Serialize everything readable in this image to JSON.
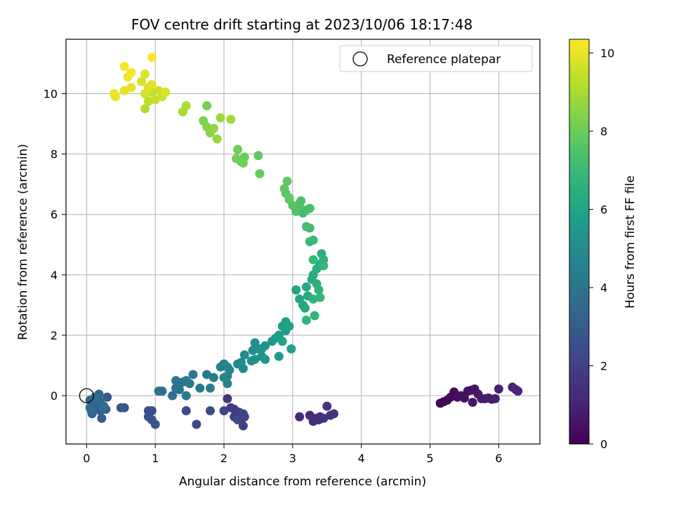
{
  "chart_data": {
    "type": "scatter",
    "title": "FOV centre drift starting at 2023/10/06 18:17:48",
    "xlabel": "Angular distance from reference (arcmin)",
    "ylabel": "Rotation from reference (arcmin)",
    "xlim": [
      -0.3,
      6.6
    ],
    "ylim": [
      -1.6,
      11.8
    ],
    "xticks": [
      0,
      1,
      2,
      3,
      4,
      5,
      6
    ],
    "yticks": [
      0,
      2,
      4,
      6,
      8,
      10
    ],
    "grid": true,
    "legend": {
      "position": "top-right",
      "entries": [
        "Reference platepar"
      ]
    },
    "reference_point": {
      "x": 0,
      "y": 0
    },
    "colorbar": {
      "label": "Hours from first FF file",
      "range": [
        0,
        10.35
      ],
      "ticks": [
        0,
        2,
        4,
        6,
        8,
        10
      ],
      "colormap": "viridis"
    },
    "series": [
      {
        "color_by": "hours",
        "points": [
          [
            5.15,
            -0.25,
            0.05
          ],
          [
            5.2,
            -0.2,
            0.1
          ],
          [
            5.25,
            -0.15,
            0.15
          ],
          [
            5.3,
            -0.05,
            0.2
          ],
          [
            5.35,
            0.12,
            0.25
          ],
          [
            5.4,
            -0.05,
            0.3
          ],
          [
            5.45,
            0.0,
            0.35
          ],
          [
            5.5,
            -0.08,
            0.4
          ],
          [
            5.55,
            0.15,
            0.45
          ],
          [
            5.6,
            0.18,
            0.5
          ],
          [
            5.65,
            0.22,
            0.55
          ],
          [
            5.62,
            -0.22,
            0.6
          ],
          [
            5.7,
            0.05,
            0.65
          ],
          [
            5.75,
            -0.1,
            0.7
          ],
          [
            5.8,
            -0.1,
            0.75
          ],
          [
            5.85,
            -0.08,
            0.8
          ],
          [
            5.9,
            -0.12,
            0.85
          ],
          [
            5.95,
            -0.1,
            0.9
          ],
          [
            6.0,
            0.22,
            0.95
          ],
          [
            6.2,
            0.28,
            1.0
          ],
          [
            6.25,
            0.2,
            1.05
          ],
          [
            6.28,
            0.15,
            1.1
          ],
          [
            3.1,
            -0.7,
            1.2
          ],
          [
            3.25,
            -0.65,
            1.25
          ],
          [
            3.3,
            -0.85,
            1.3
          ],
          [
            3.35,
            -0.75,
            1.35
          ],
          [
            3.4,
            -0.7,
            1.4
          ],
          [
            3.45,
            -0.75,
            1.45
          ],
          [
            3.5,
            -0.35,
            1.5
          ],
          [
            3.55,
            -0.65,
            1.55
          ],
          [
            3.6,
            -0.6,
            1.6
          ],
          [
            3.38,
            -0.8,
            1.42
          ],
          [
            2.05,
            -0.1,
            1.7
          ],
          [
            2.1,
            -0.4,
            1.75
          ],
          [
            2.15,
            -0.45,
            1.8
          ],
          [
            2.15,
            -0.7,
            1.85
          ],
          [
            2.2,
            -0.65,
            1.9
          ],
          [
            2.22,
            -0.55,
            1.95
          ],
          [
            2.25,
            -0.8,
            2.0
          ],
          [
            2.28,
            -1.0,
            2.05
          ],
          [
            2.3,
            -0.7,
            2.1
          ],
          [
            2.28,
            -0.6,
            2.15
          ],
          [
            2.0,
            -0.5,
            2.2
          ],
          [
            2.2,
            -0.8,
            2.25
          ],
          [
            1.45,
            -0.5,
            2.3
          ],
          [
            1.6,
            -0.95,
            2.35
          ],
          [
            1.8,
            -0.5,
            2.4
          ],
          [
            0.9,
            -0.5,
            2.45
          ],
          [
            0.95,
            -0.5,
            2.5
          ],
          [
            0.9,
            -0.7,
            2.55
          ],
          [
            0.95,
            -0.8,
            2.6
          ],
          [
            1.0,
            -0.95,
            2.65
          ],
          [
            0.5,
            -0.4,
            2.75
          ],
          [
            0.55,
            -0.4,
            2.8
          ],
          [
            0.3,
            -0.05,
            2.85
          ],
          [
            0.25,
            -0.35,
            2.9
          ],
          [
            0.28,
            -0.45,
            2.95
          ],
          [
            0.2,
            -0.5,
            3.0
          ],
          [
            0.22,
            -0.75,
            3.05
          ],
          [
            0.15,
            -0.35,
            3.1
          ],
          [
            0.1,
            -0.45,
            3.15
          ],
          [
            0.08,
            -0.6,
            3.2
          ],
          [
            0.12,
            -0.25,
            3.25
          ],
          [
            0.1,
            -0.2,
            3.3
          ],
          [
            0.18,
            0.05,
            3.35
          ],
          [
            0.15,
            -0.1,
            3.4
          ],
          [
            0.05,
            -0.15,
            3.45
          ],
          [
            0.05,
            -0.4,
            3.5
          ],
          [
            0.07,
            -0.5,
            3.55
          ],
          [
            0.2,
            -0.2,
            3.6
          ],
          [
            0.25,
            -0.4,
            3.65
          ],
          [
            0.12,
            -0.05,
            3.7
          ],
          [
            1.05,
            0.15,
            3.75
          ],
          [
            1.1,
            0.15,
            3.8
          ],
          [
            1.25,
            0.0,
            3.85
          ],
          [
            1.3,
            0.25,
            3.9
          ],
          [
            1.35,
            0.2,
            3.95
          ],
          [
            1.4,
            0.45,
            4.0
          ],
          [
            1.3,
            0.5,
            4.05
          ],
          [
            1.45,
            0.5,
            4.1
          ],
          [
            1.45,
            0.0,
            4.15
          ],
          [
            1.5,
            0.4,
            4.2
          ],
          [
            1.55,
            0.7,
            4.25
          ],
          [
            1.65,
            0.25,
            4.3
          ],
          [
            1.75,
            0.7,
            4.35
          ],
          [
            1.8,
            0.25,
            4.4
          ],
          [
            1.85,
            0.6,
            4.45
          ],
          [
            1.95,
            0.95,
            4.5
          ],
          [
            2.0,
            1.05,
            4.55
          ],
          [
            2.05,
            0.65,
            4.6
          ],
          [
            2.05,
            0.4,
            4.65
          ],
          [
            2.08,
            0.85,
            4.7
          ],
          [
            2.0,
            0.6,
            4.75
          ],
          [
            2.05,
            0.95,
            4.8
          ],
          [
            2.2,
            1.05,
            4.85
          ],
          [
            2.25,
            1.1,
            4.9
          ],
          [
            2.28,
            0.9,
            4.95
          ],
          [
            2.3,
            1.35,
            5.0
          ],
          [
            2.4,
            1.15,
            5.05
          ],
          [
            2.42,
            1.5,
            5.1
          ],
          [
            2.45,
            1.75,
            5.15
          ],
          [
            2.5,
            1.55,
            5.2
          ],
          [
            2.45,
            1.2,
            5.25
          ],
          [
            2.55,
            1.3,
            5.3
          ],
          [
            2.55,
            1.55,
            5.35
          ],
          [
            2.6,
            1.65,
            5.4
          ],
          [
            2.6,
            1.2,
            5.45
          ],
          [
            2.7,
            1.8,
            5.5
          ],
          [
            2.75,
            1.9,
            5.55
          ],
          [
            2.8,
            1.3,
            5.6
          ],
          [
            2.8,
            2.0,
            5.65
          ],
          [
            2.85,
            2.3,
            5.7
          ],
          [
            2.9,
            2.15,
            5.75
          ],
          [
            2.9,
            2.45,
            5.8
          ],
          [
            2.98,
            1.55,
            5.85
          ],
          [
            2.85,
            1.8,
            5.9
          ],
          [
            2.95,
            2.3,
            5.95
          ],
          [
            3.05,
            3.5,
            6.0
          ],
          [
            3.1,
            3.2,
            6.05
          ],
          [
            3.15,
            3.0,
            6.1
          ],
          [
            3.18,
            2.9,
            6.15
          ],
          [
            3.2,
            3.6,
            6.2
          ],
          [
            3.22,
            3.3,
            6.25
          ],
          [
            3.28,
            3.85,
            6.3
          ],
          [
            3.3,
            4.0,
            6.35
          ],
          [
            3.35,
            4.2,
            6.4
          ],
          [
            3.4,
            4.35,
            6.45
          ],
          [
            3.42,
            4.7,
            6.5
          ],
          [
            3.45,
            4.5,
            6.55
          ],
          [
            3.35,
            3.7,
            6.6
          ],
          [
            3.38,
            3.5,
            6.65
          ],
          [
            3.3,
            3.2,
            6.7
          ],
          [
            3.32,
            2.65,
            6.75
          ],
          [
            3.2,
            2.5,
            6.8
          ],
          [
            3.4,
            3.25,
            6.85
          ],
          [
            3.45,
            4.3,
            6.9
          ],
          [
            3.3,
            4.5,
            6.95
          ],
          [
            3.25,
            5.1,
            7.0
          ],
          [
            3.3,
            5.15,
            7.05
          ],
          [
            3.1,
            6.35,
            7.1
          ],
          [
            3.15,
            6.05,
            7.15
          ],
          [
            3.2,
            5.6,
            7.2
          ],
          [
            3.25,
            5.55,
            7.25
          ],
          [
            3.2,
            6.15,
            7.3
          ],
          [
            3.25,
            6.2,
            7.35
          ],
          [
            3.12,
            6.45,
            7.4
          ],
          [
            3.1,
            6.25,
            7.45
          ],
          [
            3.05,
            6.1,
            7.5
          ],
          [
            3.0,
            6.3,
            7.55
          ],
          [
            2.95,
            6.5,
            7.6
          ],
          [
            2.9,
            6.7,
            7.65
          ],
          [
            2.88,
            6.85,
            7.7
          ],
          [
            2.92,
            7.1,
            7.75
          ],
          [
            2.95,
            6.55,
            7.8
          ],
          [
            2.5,
            7.95,
            7.85
          ],
          [
            2.52,
            7.35,
            7.9
          ],
          [
            2.3,
            7.9,
            7.95
          ],
          [
            2.25,
            7.75,
            8.0
          ],
          [
            2.2,
            8.15,
            8.05
          ],
          [
            2.18,
            7.85,
            8.1
          ],
          [
            2.28,
            7.7,
            8.15
          ],
          [
            1.75,
            9.6,
            8.2
          ],
          [
            1.7,
            9.1,
            8.3
          ],
          [
            1.75,
            8.9,
            8.4
          ],
          [
            1.8,
            8.7,
            8.5
          ],
          [
            1.85,
            8.85,
            8.6
          ],
          [
            1.9,
            8.5,
            8.7
          ],
          [
            1.95,
            9.2,
            8.8
          ],
          [
            2.1,
            9.15,
            8.9
          ],
          [
            1.4,
            9.4,
            9.0
          ],
          [
            1.45,
            9.6,
            9.1
          ],
          [
            0.85,
            9.5,
            9.2
          ],
          [
            0.9,
            9.75,
            9.3
          ],
          [
            0.95,
            10.05,
            9.4
          ],
          [
            1.0,
            9.8,
            9.5
          ],
          [
            1.05,
            10.1,
            9.55
          ],
          [
            1.1,
            9.9,
            9.6
          ],
          [
            0.85,
            10.0,
            9.65
          ],
          [
            0.8,
            10.4,
            9.7
          ],
          [
            0.9,
            10.2,
            9.75
          ],
          [
            1.15,
            10.05,
            9.8
          ],
          [
            0.85,
            10.65,
            9.85
          ],
          [
            0.95,
            10.3,
            9.9
          ],
          [
            0.65,
            10.2,
            9.95
          ],
          [
            0.55,
            10.1,
            10.0
          ],
          [
            0.4,
            10.0,
            10.05
          ],
          [
            0.42,
            9.9,
            10.1
          ],
          [
            0.6,
            10.55,
            10.15
          ],
          [
            0.65,
            10.7,
            10.2
          ],
          [
            0.55,
            10.9,
            10.25
          ],
          [
            0.95,
            11.2,
            10.3
          ]
        ]
      }
    ]
  }
}
